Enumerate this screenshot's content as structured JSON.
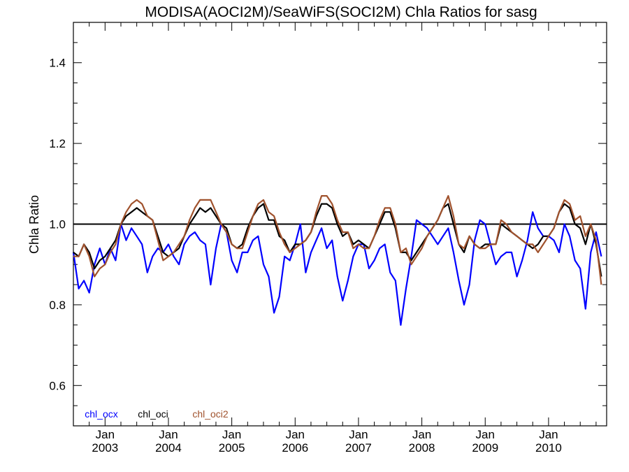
{
  "chart_data": {
    "type": "line",
    "title": "MODISA(AOCI2M)/SeaWiFS(SOCI2M)  Chla Ratios for sasg",
    "xlabel": "",
    "ylabel": "Chla Ratio",
    "x_start": "2002-07",
    "xlim": [
      "2002-07",
      "2010-12"
    ],
    "ylim": [
      0.5,
      1.5
    ],
    "y_ticks": [
      0.6,
      0.8,
      1.0,
      1.2,
      1.4
    ],
    "y_tick_labels": [
      "0.6",
      "0.8",
      "1.0",
      "1.2",
      "1.4"
    ],
    "x_ticks": [
      {
        "top": "Jan",
        "bottom": "2003",
        "date": "2003-01"
      },
      {
        "top": "Jan",
        "bottom": "2004",
        "date": "2004-01"
      },
      {
        "top": "Jan",
        "bottom": "2005",
        "date": "2005-01"
      },
      {
        "top": "Jan",
        "bottom": "2006",
        "date": "2006-01"
      },
      {
        "top": "Jan",
        "bottom": "2007",
        "date": "2007-01"
      },
      {
        "top": "Jan",
        "bottom": "2008",
        "date": "2008-01"
      },
      {
        "top": "Jan",
        "bottom": "2009",
        "date": "2009-01"
      },
      {
        "top": "Jan",
        "bottom": "2010",
        "date": "2010-01"
      }
    ],
    "reference_line": 1.0,
    "grid": false,
    "legend_position": "bottom-left",
    "series": [
      {
        "name": "chl_ocx",
        "color": "#0000ff",
        "values": [
          0.93,
          0.84,
          0.86,
          0.83,
          0.9,
          0.94,
          0.9,
          0.94,
          0.91,
          1.0,
          0.96,
          0.99,
          0.97,
          0.95,
          0.88,
          0.92,
          0.94,
          0.93,
          0.95,
          0.92,
          0.9,
          0.95,
          0.97,
          0.98,
          0.96,
          0.95,
          0.85,
          0.94,
          1.0,
          0.98,
          0.91,
          0.88,
          0.93,
          0.93,
          0.96,
          0.97,
          0.9,
          0.87,
          0.78,
          0.82,
          0.92,
          0.91,
          0.95,
          1.0,
          0.88,
          0.93,
          0.96,
          0.99,
          0.94,
          0.96,
          0.87,
          0.81,
          0.86,
          0.92,
          0.95,
          0.95,
          0.89,
          0.91,
          0.94,
          0.95,
          0.88,
          0.86,
          0.75,
          0.84,
          0.92,
          1.01,
          1.0,
          0.99,
          0.97,
          0.95,
          0.97,
          0.99,
          0.93,
          0.86,
          0.8,
          0.85,
          0.96,
          1.01,
          1.0,
          0.95,
          0.9,
          0.92,
          0.93,
          0.93,
          0.87,
          0.91,
          0.96,
          1.03,
          0.99,
          0.97,
          0.97,
          0.96,
          0.93,
          1.0,
          0.97,
          0.91,
          0.89,
          0.79,
          0.93,
          0.98,
          0.92
        ]
      },
      {
        "name": "chl_oci",
        "color": "#000000",
        "values": [
          0.93,
          0.92,
          0.95,
          0.93,
          0.89,
          0.91,
          0.92,
          0.94,
          0.96,
          1.0,
          1.02,
          1.03,
          1.04,
          1.03,
          1.02,
          1.01,
          0.97,
          0.93,
          0.92,
          0.93,
          0.94,
          0.97,
          1.0,
          1.02,
          1.04,
          1.03,
          1.04,
          1.02,
          1.0,
          0.99,
          0.95,
          0.94,
          0.95,
          0.99,
          1.02,
          1.04,
          1.05,
          1.01,
          1.01,
          0.97,
          0.96,
          0.93,
          0.95,
          0.95,
          0.96,
          0.98,
          1.02,
          1.05,
          1.05,
          1.04,
          1.0,
          0.97,
          0.98,
          0.95,
          0.96,
          0.95,
          0.94,
          0.97,
          1.0,
          1.03,
          1.03,
          0.99,
          0.93,
          0.93,
          0.91,
          0.93,
          0.95,
          0.97,
          0.99,
          1.01,
          1.04,
          1.05,
          1.0,
          0.95,
          0.93,
          0.97,
          0.95,
          0.94,
          0.95,
          0.95,
          0.95,
          1.0,
          0.99,
          0.98,
          0.97,
          0.96,
          0.95,
          0.94,
          0.95,
          0.97,
          0.97,
          0.99,
          1.03,
          1.05,
          1.04,
          1.0,
          0.99,
          0.95,
          1.0,
          0.95,
          0.87
        ]
      },
      {
        "name": "chl_oci2",
        "color": "#a0522d",
        "values": [
          0.92,
          0.92,
          0.95,
          0.92,
          0.87,
          0.89,
          0.9,
          0.93,
          0.95,
          1.0,
          1.03,
          1.05,
          1.06,
          1.05,
          1.02,
          1.01,
          0.96,
          0.91,
          0.92,
          0.93,
          0.95,
          0.97,
          1.01,
          1.04,
          1.06,
          1.06,
          1.06,
          1.03,
          1.0,
          0.98,
          0.95,
          0.94,
          0.94,
          0.98,
          1.02,
          1.05,
          1.06,
          1.03,
          1.02,
          0.98,
          0.95,
          0.93,
          0.94,
          0.95,
          0.96,
          0.98,
          1.03,
          1.07,
          1.07,
          1.05,
          1.01,
          0.98,
          0.98,
          0.94,
          0.95,
          0.94,
          0.94,
          0.97,
          1.01,
          1.04,
          1.04,
          1.0,
          0.93,
          0.94,
          0.9,
          0.92,
          0.94,
          0.97,
          0.99,
          1.01,
          1.04,
          1.07,
          1.02,
          0.95,
          0.94,
          0.97,
          0.95,
          0.94,
          0.94,
          0.95,
          0.95,
          1.01,
          1.0,
          0.98,
          0.97,
          0.96,
          0.95,
          0.95,
          0.93,
          0.95,
          0.97,
          0.99,
          1.03,
          1.06,
          1.05,
          1.01,
          1.02,
          0.97,
          1.0,
          0.96,
          0.85
        ]
      }
    ]
  }
}
